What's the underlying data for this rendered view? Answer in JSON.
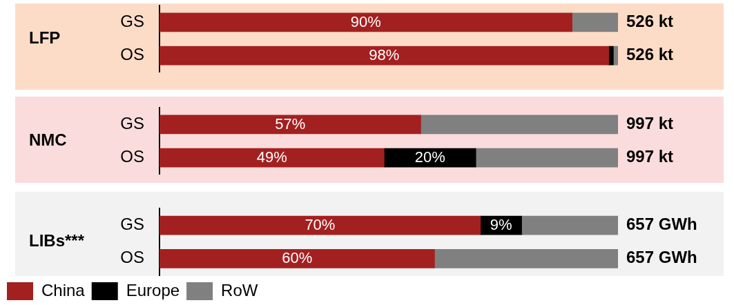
{
  "chart_data": [
    {
      "type": "bar",
      "orientation": "horizontal",
      "stacked": true,
      "title": "LFP",
      "categories": [
        "GS",
        "OS"
      ],
      "tick_labels": "y",
      "annotations": [
        "526 kt",
        "526 kt"
      ],
      "series": [
        {
          "color": "#a32020",
          "values": [
            90,
            98
          ],
          "value_labels": [
            "90%",
            "98%"
          ]
        },
        {
          "color": "#000000",
          "values": [
            null,
            1
          ],
          "value_labels": [
            null,
            null
          ]
        },
        {
          "color": "#808080",
          "values": [
            10,
            1
          ],
          "value_labels": [
            null,
            null
          ]
        }
      ]
    },
    {
      "type": "bar",
      "orientation": "horizontal",
      "stacked": true,
      "title": "NMC",
      "categories": [
        "GS",
        "OS"
      ],
      "tick_labels": "y",
      "annotations": [
        "997 kt",
        "997 kt"
      ],
      "series": [
        {
          "color": "#a32020",
          "values": [
            57,
            49
          ],
          "value_labels": [
            "57%",
            "49%"
          ]
        },
        {
          "color": "#000000",
          "values": [
            null,
            20
          ],
          "value_labels": [
            null,
            "20%"
          ]
        },
        {
          "color": "#808080",
          "values": [
            43,
            31
          ],
          "value_labels": [
            null,
            null
          ]
        }
      ]
    },
    {
      "type": "bar",
      "orientation": "horizontal",
      "stacked": true,
      "title": "LIBs***",
      "categories": [
        "GS",
        "OS"
      ],
      "tick_labels": "y",
      "legend": "bottom",
      "annotations": [
        "657 GWh",
        "657 GWh"
      ],
      "series": [
        {
          "name": "China",
          "color": "#a32020",
          "values": [
            70,
            60
          ],
          "value_labels": [
            "70%",
            "60%"
          ]
        },
        {
          "name": "Europe",
          "color": "#000000",
          "values": [
            9,
            null
          ],
          "value_labels": [
            "9%",
            null
          ]
        },
        {
          "name": "RoW",
          "color": "#808080",
          "values": [
            21,
            40
          ],
          "value_labels": [
            null,
            null
          ]
        }
      ]
    }
  ]
}
